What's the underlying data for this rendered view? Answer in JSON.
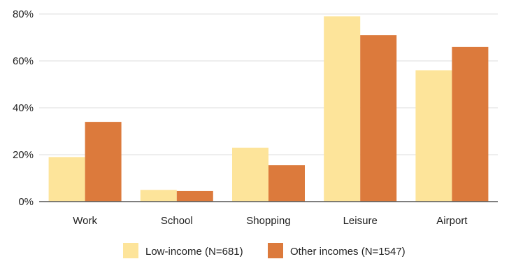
{
  "chart_data": {
    "type": "bar",
    "categories": [
      "Work",
      "School",
      "Shopping",
      "Leisure",
      "Airport"
    ],
    "series": [
      {
        "name": "Low-income (N=681)",
        "color": "#FDE49A",
        "values": [
          19,
          5,
          23,
          79,
          56
        ]
      },
      {
        "name": "Other incomes (N=1547)",
        "color": "#DC7A3C",
        "values": [
          34,
          4.5,
          15.5,
          71,
          66
        ]
      }
    ],
    "ylim": [
      0,
      80
    ],
    "yticks": [
      0,
      20,
      40,
      60,
      80
    ],
    "ytick_labels": [
      "0%",
      "20%",
      "40%",
      "60%",
      "80%"
    ],
    "grid": true,
    "legend_position": "bottom-center"
  }
}
